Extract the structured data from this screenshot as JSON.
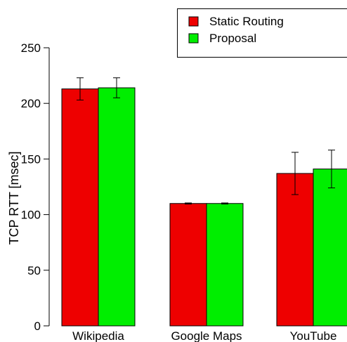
{
  "chart_data": {
    "type": "bar",
    "ylabel": "TCP RTT [msec]",
    "categories": [
      "Wikipedia",
      "Google Maps",
      "YouTube"
    ],
    "series": [
      {
        "name": "Static Routing",
        "color": "#ee0000",
        "values": [
          213,
          110,
          137
        ],
        "error": [
          10,
          0.5,
          19
        ]
      },
      {
        "name": "Proposal",
        "color": "#00ee00",
        "values": [
          214,
          110,
          141
        ],
        "error": [
          9,
          0.5,
          17
        ]
      }
    ],
    "ylim": [
      0,
      250
    ],
    "yticks": [
      0,
      50,
      100,
      150,
      200,
      250
    ],
    "legend_position": "top-right",
    "grid": false
  }
}
